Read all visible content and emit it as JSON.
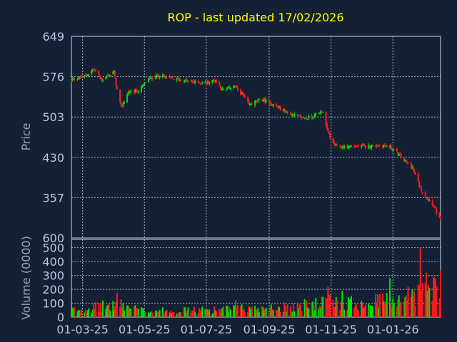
{
  "chart_data": {
    "type": "candlestick",
    "title": "ROP - last updated 17/02/2026",
    "colors": {
      "background": "#142033",
      "up": "#00e000",
      "down": "#ff1a1a",
      "grid": "#c8d4e8",
      "axis": "#b8c8e8",
      "title": "#ffff00"
    },
    "price_panel": {
      "ylabel": "Price",
      "ylim": [
        284,
        649
      ],
      "yticks": [
        649,
        576,
        503,
        430,
        357
      ],
      "bottom_label": "600",
      "grid": true
    },
    "volume_panel": {
      "ylabel": "Volume (0000)",
      "ylim": [
        0,
        560
      ],
      "yticks": [
        0,
        100,
        200,
        300,
        400,
        500
      ],
      "grid": true
    },
    "x_axis": {
      "range": [
        "2025-02-18",
        "2026-02-17"
      ],
      "ticks": [
        "01-03-25",
        "01-05-25",
        "01-07-25",
        "01-09-25",
        "01-11-25",
        "01-01-26"
      ],
      "tick_dates": [
        "2025-03-01",
        "2025-05-01",
        "2025-07-01",
        "2025-09-01",
        "2025-11-01",
        "2026-01-01"
      ]
    },
    "close_anchors": [
      [
        "2025-02-18",
        570
      ],
      [
        "2025-03-05",
        578
      ],
      [
        "2025-03-12",
        590
      ],
      [
        "2025-03-20",
        570
      ],
      [
        "2025-04-01",
        585
      ],
      [
        "2025-04-03",
        560
      ],
      [
        "2025-04-08",
        520
      ],
      [
        "2025-04-15",
        548
      ],
      [
        "2025-04-25",
        550
      ],
      [
        "2025-05-05",
        572
      ],
      [
        "2025-05-15",
        578
      ],
      [
        "2025-05-25",
        574
      ],
      [
        "2025-06-05",
        570
      ],
      [
        "2025-06-20",
        566
      ],
      [
        "2025-07-01",
        565
      ],
      [
        "2025-07-10",
        570
      ],
      [
        "2025-07-18",
        550
      ],
      [
        "2025-07-28",
        560
      ],
      [
        "2025-08-05",
        545
      ],
      [
        "2025-08-12",
        525
      ],
      [
        "2025-08-25",
        535
      ],
      [
        "2025-09-05",
        525
      ],
      [
        "2025-09-20",
        510
      ],
      [
        "2025-10-05",
        500
      ],
      [
        "2025-10-12",
        502
      ],
      [
        "2025-10-20",
        510
      ],
      [
        "2025-10-24",
        514
      ],
      [
        "2025-10-28",
        480
      ],
      [
        "2025-11-03",
        455
      ],
      [
        "2025-11-08",
        448
      ],
      [
        "2025-11-20",
        450
      ],
      [
        "2025-12-10",
        450
      ],
      [
        "2025-12-20",
        452
      ],
      [
        "2025-12-28",
        450
      ],
      [
        "2026-01-05",
        438
      ],
      [
        "2026-01-12",
        425
      ],
      [
        "2026-01-20",
        412
      ],
      [
        "2026-01-28",
        375
      ],
      [
        "2026-02-01",
        360
      ],
      [
        "2026-02-08",
        350
      ],
      [
        "2026-02-12",
        335
      ],
      [
        "2026-02-17",
        314
      ]
    ],
    "volume_anchors": [
      [
        "2025-02-18",
        50
      ],
      [
        "2025-04-05",
        90
      ],
      [
        "2025-05-01",
        45
      ],
      [
        "2025-07-01",
        50
      ],
      [
        "2025-08-01",
        60
      ],
      [
        "2025-09-01",
        65
      ],
      [
        "2025-10-01",
        80
      ],
      [
        "2025-11-01",
        110
      ],
      [
        "2025-12-01",
        100
      ],
      [
        "2026-01-01",
        130
      ],
      [
        "2026-01-20",
        160
      ],
      [
        "2026-02-17",
        220
      ]
    ],
    "volume_spikes": [
      [
        "2025-04-04",
        170
      ],
      [
        "2025-07-30",
        120
      ],
      [
        "2025-10-29",
        220
      ],
      [
        "2025-11-12",
        190
      ],
      [
        "2025-12-29",
        280
      ],
      [
        "2026-01-28",
        500
      ],
      [
        "2026-02-03",
        320
      ],
      [
        "2026-02-10",
        290
      ]
    ]
  }
}
